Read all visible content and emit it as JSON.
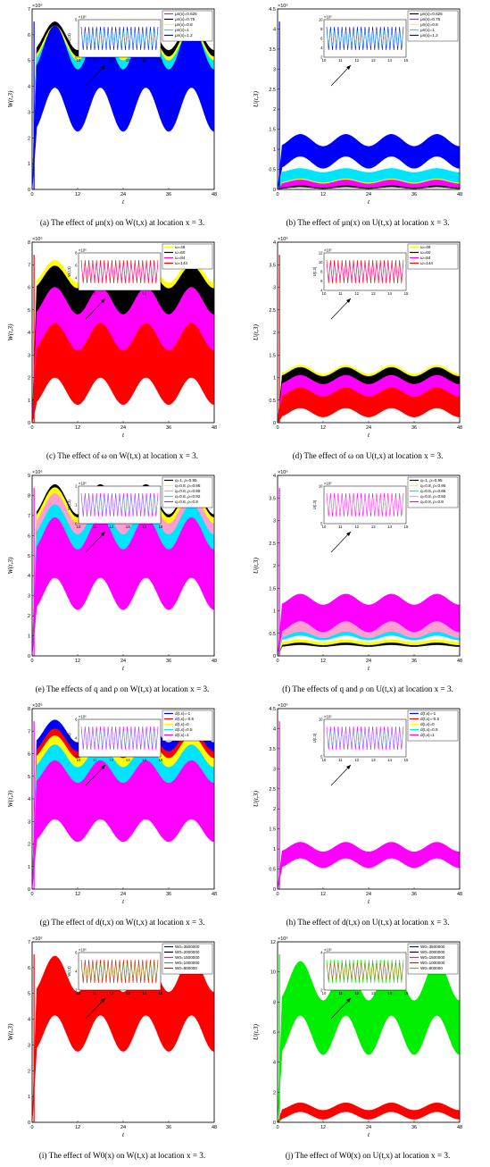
{
  "chart_data": [
    {
      "id": "a",
      "type": "line",
      "caption": "(a) The effect of μn(x) on W(t,x) at location x = 3.",
      "xlabel": "t",
      "ylabel": "W(t,3)",
      "exp": "×10⁶",
      "xlim": [
        0,
        48
      ],
      "ylim": [
        0,
        7
      ],
      "xticks": [
        "0",
        "12",
        "24",
        "36",
        "48"
      ],
      "yticks": [
        "0",
        "1",
        "2",
        "3",
        "4",
        "5",
        "6",
        "7"
      ],
      "inset": {
        "exp": "×10⁶",
        "xticks": [
          "10",
          "11",
          "12",
          "13",
          "14",
          "15"
        ],
        "yticks": [
          "0",
          "5"
        ],
        "ylabel": "W(t,3)"
      },
      "legend": [
        "μn(x)=0.625",
        "μn(x)=0.75",
        "μn(x)=0.8",
        "μn(x)=1",
        "μn(x)=1.2"
      ],
      "series": [
        {
          "color": "#ff00ff",
          "mean": 5.2,
          "amp": 0.6,
          "band": 1.4
        },
        {
          "color": "#000000",
          "mean": 5.3,
          "amp": 0.55,
          "band": 1.3
        },
        {
          "color": "#ffff00",
          "mean": 5.1,
          "amp": 0.6,
          "band": 1.3
        },
        {
          "color": "#00e5ff",
          "mean": 4.9,
          "amp": 0.6,
          "band": 1.4
        },
        {
          "color": "#0000ff",
          "mean": 4.3,
          "amp": 0.85,
          "band": 2.4
        }
      ]
    },
    {
      "id": "b",
      "type": "line",
      "caption": "(b) The effect of μn(x) on U(t,x) at location x = 3.",
      "xlabel": "t",
      "ylabel": "U(t,3)",
      "exp": "×10⁶",
      "xlim": [
        0,
        48
      ],
      "ylim": [
        0,
        4.5
      ],
      "xticks": [
        "0",
        "12",
        "24",
        "36",
        "48"
      ],
      "yticks": [
        "0",
        "0.5",
        "1",
        "1.5",
        "2",
        "2.5",
        "3",
        "3.5",
        "4",
        "4.5"
      ],
      "inset": {
        "exp": "×10⁵",
        "xticks": [
          "10",
          "11",
          "12",
          "13",
          "14",
          "15"
        ],
        "yticks": [
          "2",
          "4",
          "6",
          "8",
          "10"
        ],
        "ylabel": ""
      },
      "legend": [
        "μn(x)=0.625",
        "μn(x)=0.75",
        "μn(x)=0.8",
        "μn(x)=1",
        "μn(x)=1.2"
      ],
      "series": [
        {
          "color": "#000000",
          "mean": 0.1,
          "amp": 0.02,
          "band": 0.12
        },
        {
          "color": "#ff00ff",
          "mean": 0.15,
          "amp": 0.03,
          "band": 0.15
        },
        {
          "color": "#ffff00",
          "mean": 0.3,
          "amp": 0.05,
          "band": 0.2
        },
        {
          "color": "#00e5ff",
          "mean": 0.35,
          "amp": 0.05,
          "band": 0.25
        },
        {
          "color": "#0000ff",
          "mean": 0.95,
          "amp": 0.15,
          "band": 0.55
        }
      ]
    },
    {
      "id": "c",
      "type": "line",
      "caption": "(c) The effect of ω on W(t,x) at location x = 3.",
      "xlabel": "t",
      "ylabel": "W(t,3)",
      "exp": "×10⁶",
      "xlim": [
        0,
        48
      ],
      "ylim": [
        0,
        8
      ],
      "xticks": [
        "0",
        "12",
        "24",
        "36",
        "48"
      ],
      "yticks": [
        "0",
        "1",
        "2",
        "3",
        "4",
        "5",
        "6",
        "7",
        "8"
      ],
      "inset": {
        "exp": "×10⁶",
        "xticks": [
          "10",
          "11",
          "12",
          "13",
          "14",
          "15"
        ],
        "yticks": [
          "2",
          "4",
          "6",
          "8"
        ],
        "ylabel": "W(t,3)"
      },
      "legend": [
        "ω=48",
        "ω=60",
        "ω=84",
        "ω=144"
      ],
      "series": [
        {
          "color": "#ffff00",
          "mean": 6.1,
          "amp": 0.5,
          "band": 1.2
        },
        {
          "color": "#000000",
          "mean": 5.8,
          "amp": 0.5,
          "band": 1.3
        },
        {
          "color": "#ff00ff",
          "mean": 4.3,
          "amp": 0.6,
          "band": 2.2
        },
        {
          "color": "#ff0000",
          "mean": 2.6,
          "amp": 0.6,
          "band": 2.4
        }
      ]
    },
    {
      "id": "d",
      "type": "line",
      "caption": "(d) The effect of ω on U(t,x) at location x = 3.",
      "xlabel": "t",
      "ylabel": "U(t,3)",
      "exp": "×10⁶",
      "xlim": [
        0,
        48
      ],
      "ylim": [
        0,
        4
      ],
      "xticks": [
        "0",
        "12",
        "24",
        "36",
        "48"
      ],
      "yticks": [
        "0",
        "0.5",
        "1",
        "1.5",
        "2",
        "2.5",
        "3",
        "3.5",
        "4"
      ],
      "inset": {
        "exp": "×10⁵",
        "xticks": [
          "10",
          "11",
          "12",
          "13",
          "14",
          "15"
        ],
        "yticks": [
          "4",
          "6",
          "8",
          "10",
          "12"
        ],
        "ylabel": "U(t,3)"
      },
      "legend": [
        "ω=48",
        "ω=60",
        "ω=84",
        "ω=144"
      ],
      "series": [
        {
          "color": "#ffff00",
          "mean": 1.05,
          "amp": 0.1,
          "band": 0.25
        },
        {
          "color": "#000000",
          "mean": 1.0,
          "amp": 0.1,
          "band": 0.25
        },
        {
          "color": "#ff00ff",
          "mean": 0.75,
          "amp": 0.1,
          "band": 0.4
        },
        {
          "color": "#ff0000",
          "mean": 0.45,
          "amp": 0.1,
          "band": 0.45
        }
      ]
    },
    {
      "id": "e",
      "type": "line",
      "caption": "(e) The effects of q and ρ on W(t,x) at location x = 3.",
      "xlabel": "t",
      "ylabel": "W(t,3)",
      "exp": "×10⁶",
      "xlim": [
        0,
        48
      ],
      "ylim": [
        0,
        9
      ],
      "xticks": [
        "0",
        "12",
        "24",
        "36",
        "48"
      ],
      "yticks": [
        "0",
        "1",
        "2",
        "3",
        "4",
        "5",
        "6",
        "7",
        "8",
        "9"
      ],
      "inset": {
        "exp": "×10⁶",
        "xticks": [
          "10",
          "11",
          "12",
          "13",
          "14",
          "15"
        ],
        "yticks": [
          "0",
          "1",
          "2"
        ],
        "ylabel": "W(t,3)"
      },
      "legend": [
        "q=1, ρ=0.95",
        "q=0.8, ρ=0.95",
        "q=0.8, ρ=0.95",
        "q=0.8, ρ=0.92",
        "q=0.8, ρ=0.9"
      ],
      "series": [
        {
          "color": "#000000",
          "mean": 7.3,
          "amp": 0.75,
          "band": 1.0
        },
        {
          "color": "#ffff00",
          "mean": 7.1,
          "amp": 0.75,
          "band": 1.1
        },
        {
          "color": "#ff9fcf",
          "mean": 6.6,
          "amp": 0.75,
          "band": 1.5
        },
        {
          "color": "#00e5ff",
          "mean": 6.0,
          "amp": 0.75,
          "band": 1.6
        },
        {
          "color": "#ff00ff",
          "mean": 4.6,
          "amp": 0.8,
          "band": 3.0
        }
      ]
    },
    {
      "id": "f",
      "type": "line",
      "caption": "(f) The effects of q and ρ on U(t,x) at location x = 3.",
      "xlabel": "t",
      "ylabel": "U(t,3)",
      "exp": "×10⁶",
      "xlim": [
        0,
        48
      ],
      "ylim": [
        0,
        4
      ],
      "xticks": [
        "0",
        "12",
        "24",
        "36",
        "48"
      ],
      "yticks": [
        "0",
        "0.5",
        "1",
        "1.5",
        "2",
        "2.5",
        "3",
        "3.5",
        "4"
      ],
      "inset": {
        "exp": "×10⁵",
        "xticks": [
          "10",
          "11",
          "12",
          "13",
          "14",
          "15"
        ],
        "yticks": [
          "5",
          "10"
        ],
        "ylabel": "U(t,3)"
      },
      "legend": [
        "q=1, ρ=0.95",
        "q=0.8, ρ=0.95",
        "q=0.8, ρ=0.95",
        "q=0.8, ρ=0.92",
        "q=0.8, ρ=0.9"
      ],
      "series": [
        {
          "color": "#000000",
          "mean": 0.25,
          "amp": 0.02,
          "band": 0.05
        },
        {
          "color": "#ffff00",
          "mean": 0.3,
          "amp": 0.03,
          "band": 0.06
        },
        {
          "color": "#00e5ff",
          "mean": 0.5,
          "amp": 0.05,
          "band": 0.2
        },
        {
          "color": "#ff9fcf",
          "mean": 0.62,
          "amp": 0.07,
          "band": 0.3
        },
        {
          "color": "#ff00ff",
          "mean": 0.95,
          "amp": 0.12,
          "band": 0.6
        }
      ]
    },
    {
      "id": "g",
      "type": "line",
      "caption": "(g) The effect of d(t,x) on W(t,x) at location x = 3.",
      "xlabel": "t",
      "ylabel": "W(t,3)",
      "exp": "×10⁶",
      "xlim": [
        0,
        48
      ],
      "ylim": [
        0,
        8
      ],
      "xticks": [
        "0",
        "12",
        "24",
        "36",
        "48"
      ],
      "yticks": [
        "0",
        "1",
        "2",
        "3",
        "4",
        "5",
        "6",
        "7",
        "8"
      ],
      "inset": {
        "exp": "×10⁶",
        "xticks": [
          "10",
          "11",
          "12",
          "13",
          "14",
          "15"
        ],
        "yticks": [
          "2",
          "4",
          "6"
        ],
        "ylabel": "W(t,3)"
      },
      "legend": [
        "d(t,x)=-1",
        "d(t,x)=-0.5",
        "d(t,x)=0",
        "d(t,x)=0.5",
        "d(t,x)=1"
      ],
      "series": [
        {
          "color": "#0000ff",
          "mean": 6.5,
          "amp": 0.5,
          "band": 1.0
        },
        {
          "color": "#ff0000",
          "mean": 6.1,
          "amp": 0.5,
          "band": 1.0
        },
        {
          "color": "#ffff00",
          "mean": 5.8,
          "amp": 0.5,
          "band": 1.0
        },
        {
          "color": "#00e5ff",
          "mean": 5.4,
          "amp": 0.5,
          "band": 1.0
        },
        {
          "color": "#ff00ff",
          "mean": 3.9,
          "amp": 0.5,
          "band": 2.6
        }
      ]
    },
    {
      "id": "h",
      "type": "line",
      "caption": "(h) The effect of d(t,x) on U(t,x) at location x = 3.",
      "xlabel": "t",
      "ylabel": "U(t,3)",
      "exp": "×10⁶",
      "xlim": [
        0,
        48
      ],
      "ylim": [
        0,
        4.5
      ],
      "xticks": [
        "0",
        "12",
        "24",
        "36",
        "48"
      ],
      "yticks": [
        "0",
        "0.5",
        "1",
        "1.5",
        "2",
        "2.5",
        "3",
        "3.5",
        "4",
        "4.5"
      ],
      "inset": {
        "exp": "×10⁵",
        "xticks": [
          "10",
          "11",
          "12",
          "13",
          "14",
          "15"
        ],
        "yticks": [
          "5",
          "10"
        ],
        "ylabel": "U(t,3)"
      },
      "legend": [
        "d(t,x)=-1",
        "d(t,x)=-0.5",
        "d(t,x)=0",
        "d(t,x)=0.5",
        "d(t,x)=1"
      ],
      "series": [
        {
          "color": "#0000ff",
          "mean": 0.85,
          "amp": 0.1,
          "band": 0.35
        },
        {
          "color": "#ff0000",
          "mean": 0.85,
          "amp": 0.1,
          "band": 0.35
        },
        {
          "color": "#ffff00",
          "mean": 0.85,
          "amp": 0.1,
          "band": 0.35
        },
        {
          "color": "#00e5ff",
          "mean": 0.85,
          "amp": 0.1,
          "band": 0.35
        },
        {
          "color": "#ff00ff",
          "mean": 0.85,
          "amp": 0.12,
          "band": 0.4
        }
      ]
    },
    {
      "id": "i",
      "type": "line",
      "caption": "(i) The effect of W0(x) on W(t,x) at location x = 3.",
      "xlabel": "t",
      "ylabel": "W(t,3)",
      "exp": "×10⁶",
      "xlim": [
        0,
        48
      ],
      "ylim": [
        0,
        7
      ],
      "xticks": [
        "0",
        "12",
        "24",
        "36",
        "48"
      ],
      "yticks": [
        "0",
        "1",
        "2",
        "3",
        "4",
        "5",
        "6",
        "7"
      ],
      "inset": {
        "exp": "×10⁶",
        "xticks": [
          "10",
          "11",
          "12",
          "13",
          "14",
          "15"
        ],
        "yticks": [
          "2",
          "4",
          "6"
        ],
        "ylabel": "W(t,3)"
      },
      "legend": [
        "W0=3500000",
        "W0=2000000",
        "W0=1500000",
        "W0=1000000",
        "W0=800000"
      ],
      "series": [
        {
          "color": "#0000ff",
          "mean": 0.0,
          "amp": 0.0,
          "band": 0.0
        },
        {
          "color": "#000000",
          "mean": 0.0,
          "amp": 0.0,
          "band": 0.0
        },
        {
          "color": "#ff00ff",
          "mean": 0.0,
          "amp": 0.0,
          "band": 0.0
        },
        {
          "color": "#00cc00",
          "mean": 0.0,
          "amp": 0.0,
          "band": 0.0
        },
        {
          "color": "#ff0000",
          "mean": 4.6,
          "amp": 0.7,
          "band": 2.3
        }
      ]
    },
    {
      "id": "j",
      "type": "line",
      "caption": "(j) The effect of W0(x) on U(t,x) at location x = 3.",
      "xlabel": "t",
      "ylabel": "U(t,3)",
      "exp": "×10⁶",
      "xlim": [
        0,
        48
      ],
      "ylim": [
        0,
        12
      ],
      "xticks": [
        "0",
        "12",
        "24",
        "36",
        "48"
      ],
      "yticks": [
        "0",
        "2",
        "4",
        "6",
        "8",
        "10",
        "12"
      ],
      "inset": {
        "exp": "×10⁵",
        "xticks": [
          "10",
          "11",
          "12",
          "13",
          "14",
          "15"
        ],
        "yticks": [
          "2",
          "4"
        ],
        "ylabel": ""
      },
      "legend": [
        "W0=3500000",
        "W0=2000000",
        "W0=1500000",
        "W0=1000000",
        "W0=800000"
      ],
      "series": [
        {
          "color": "#0000ff",
          "mean": 0.0,
          "amp": 0.0,
          "band": 0.0
        },
        {
          "color": "#000000",
          "mean": 0.0,
          "amp": 0.0,
          "band": 0.0
        },
        {
          "color": "#ff00ff",
          "mean": 0.0,
          "amp": 0.0,
          "band": 0.0
        },
        {
          "color": "#ff0000",
          "mean": 0.75,
          "amp": 0.25,
          "band": 0.6
        },
        {
          "color": "#00ee00",
          "mean": 7.6,
          "amp": 1.3,
          "band": 3.6
        }
      ]
    }
  ]
}
